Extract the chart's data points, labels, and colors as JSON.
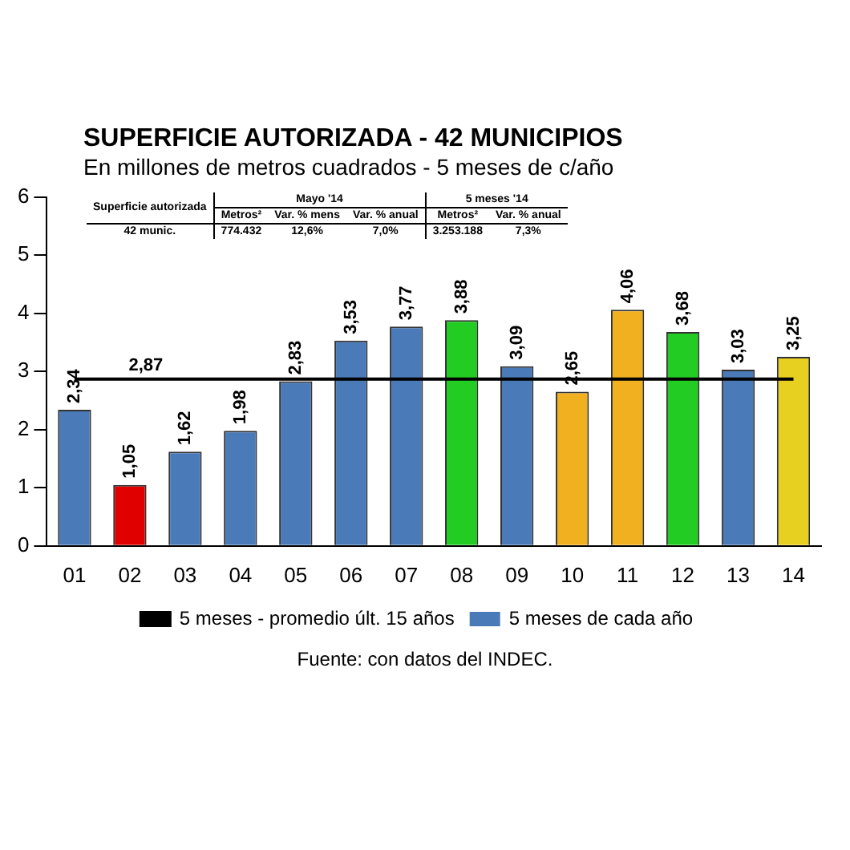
{
  "chart_data": {
    "type": "bar",
    "title": "SUPERFICIE AUTORIZADA - 42 MUNICIPIOS",
    "subtitle": "En millones de metros cuadrados - 5 meses de c/año",
    "categories": [
      "01",
      "02",
      "03",
      "04",
      "05",
      "06",
      "07",
      "08",
      "09",
      "10",
      "11",
      "12",
      "13",
      "14"
    ],
    "series": [
      {
        "name": "5 meses de cada año",
        "color": "#4a7ab8",
        "colors": [
          "#4a7ab8",
          "#e00000",
          "#4a7ab8",
          "#4a7ab8",
          "#4a7ab8",
          "#4a7ab8",
          "#4a7ab8",
          "#22cc22",
          "#4a7ab8",
          "#f0b020",
          "#f0b020",
          "#22cc22",
          "#4a7ab8",
          "#e8d020"
        ],
        "values": [
          2.34,
          1.05,
          1.62,
          1.98,
          2.83,
          3.53,
          3.77,
          3.88,
          3.09,
          2.65,
          4.06,
          3.68,
          3.03,
          3.25
        ],
        "value_labels": [
          "2,34",
          "1,05",
          "1,62",
          "1,98",
          "2,83",
          "3,53",
          "3,77",
          "3,88",
          "3,09",
          "2,65",
          "4,06",
          "3,68",
          "3,03",
          "3,25"
        ]
      },
      {
        "name": "5 meses - promedio últ. 15 años",
        "type": "line",
        "color": "#000000",
        "values": [
          2.87,
          2.87,
          2.87,
          2.87,
          2.87,
          2.87,
          2.87,
          2.87,
          2.87,
          2.87,
          2.87,
          2.87,
          2.87,
          2.87
        ],
        "value_labels": [
          null,
          "2,87",
          null,
          null,
          null,
          null,
          null,
          null,
          null,
          null,
          null,
          null,
          null,
          null
        ]
      }
    ],
    "ylim": [
      0,
      6
    ],
    "yticks": [
      0,
      1,
      2,
      3,
      4,
      5,
      6
    ],
    "grid": false,
    "legend": "bottom",
    "marker": "none",
    "annotations": [
      "Fuente: con datos del INDEC.",
      "Superficie autorizada",
      "Mayo '14",
      "5 meses '14",
      "Metros²",
      "Var. % mens",
      "Var. % anual",
      "Metros²",
      "Var. % anual",
      "42 munic.",
      "774.432",
      "12,6%",
      "7,0%",
      "3.253.188",
      "7,3%"
    ]
  }
}
